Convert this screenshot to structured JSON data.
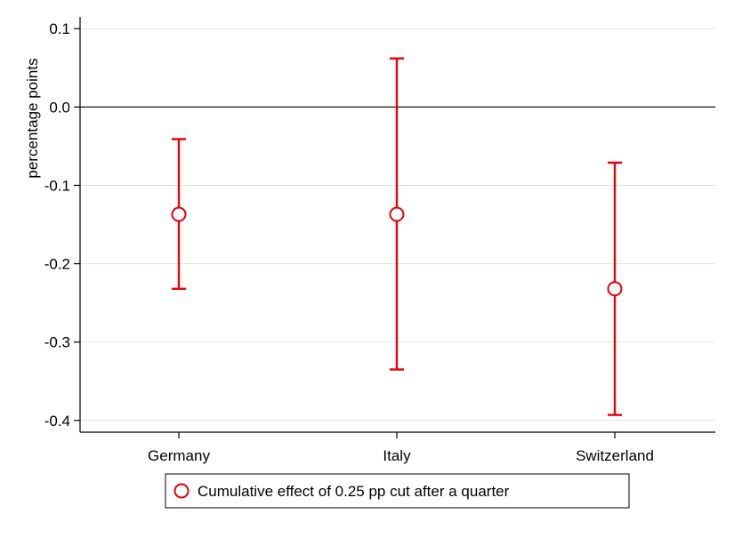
{
  "chart_data": {
    "type": "errorbar",
    "title": "",
    "xlabel": "",
    "ylabel": "percentage points",
    "ylim": [
      -0.415,
      0.115
    ],
    "yticks": [
      0.1,
      0.0,
      -0.1,
      -0.2,
      -0.3,
      -0.4
    ],
    "ytick_labels": [
      "0.1",
      "0.0",
      "-0.1",
      "-0.2",
      "-0.3",
      "-0.4"
    ],
    "grid": true,
    "reference_line": 0.0,
    "categories": [
      "Germany",
      "Italy",
      "Switzerland"
    ],
    "series": [
      {
        "name": "Cumulative effect of 0.25 pp cut after a quarter",
        "color": "#e8000b",
        "marker": "hollow-circle",
        "points": [
          -0.137,
          -0.137,
          -0.232
        ],
        "lower": [
          -0.232,
          -0.335,
          -0.393
        ],
        "upper": [
          -0.041,
          0.062,
          -0.071
        ]
      }
    ],
    "legend_position": "bottom"
  }
}
